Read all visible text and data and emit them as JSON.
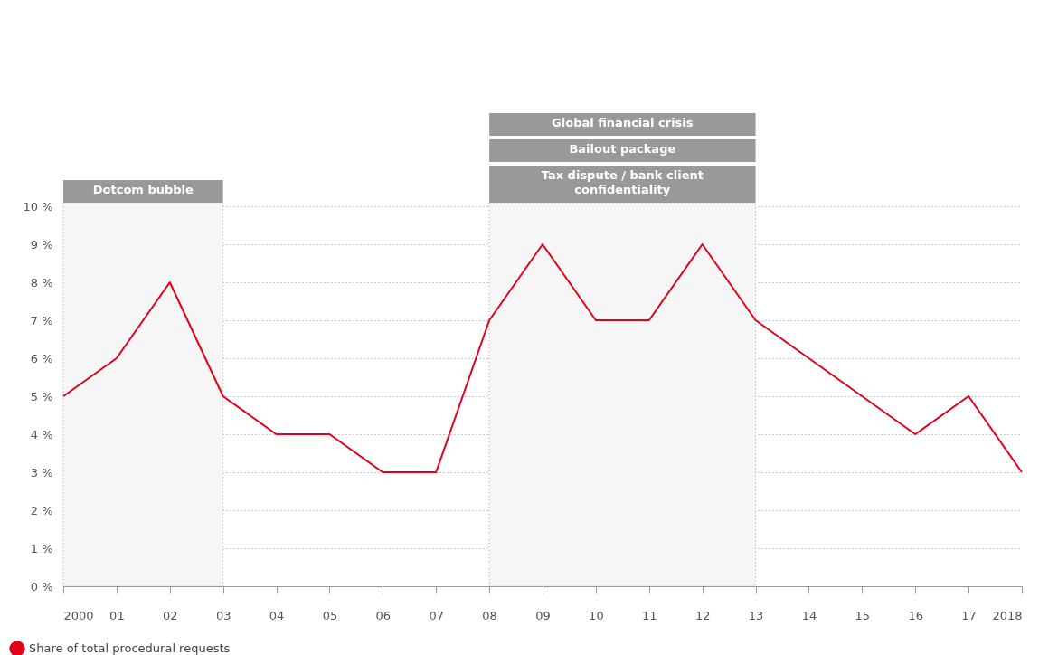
{
  "chart_data": {
    "type": "line",
    "categories": [
      "2000",
      "01",
      "02",
      "03",
      "04",
      "05",
      "06",
      "07",
      "08",
      "09",
      "10",
      "11",
      "12",
      "13",
      "14",
      "15",
      "16",
      "17",
      "2018"
    ],
    "series": [
      {
        "name": "Share of total procedural requests",
        "color": "#e3001b",
        "values": [
          5,
          6,
          8,
          5,
          4,
          4,
          3,
          3,
          7,
          9,
          7,
          7,
          9,
          7,
          6,
          5,
          4,
          5,
          3
        ]
      }
    ],
    "ylim": [
      0,
      10
    ],
    "yticks": [
      {
        "value": 0,
        "label": "0 %"
      },
      {
        "value": 1,
        "label": "1 %"
      },
      {
        "value": 2,
        "label": "2 %"
      },
      {
        "value": 3,
        "label": "3 %"
      },
      {
        "value": 4,
        "label": "4 %"
      },
      {
        "value": 5,
        "label": "5 %"
      },
      {
        "value": 6,
        "label": "6 %"
      },
      {
        "value": 7,
        "label": "7 %"
      },
      {
        "value": 8,
        "label": "8 %"
      },
      {
        "value": 9,
        "label": "9 %"
      },
      {
        "value": 10,
        "label": "10 %"
      }
    ],
    "bands": [
      {
        "axis": "x",
        "from": "2000",
        "to": "03",
        "label": "Dotcom bubble",
        "color": "#f6f6f6"
      },
      {
        "axis": "x",
        "from": "08",
        "to": "13",
        "label": "Tax dispute / bank client confidentiality",
        "color": "#f6f6f6"
      }
    ],
    "annotations": [
      "Global financial crisis",
      "Bailout package"
    ],
    "grid": "y",
    "legend": "bottom",
    "marker": "none",
    "line_style": "solid"
  }
}
